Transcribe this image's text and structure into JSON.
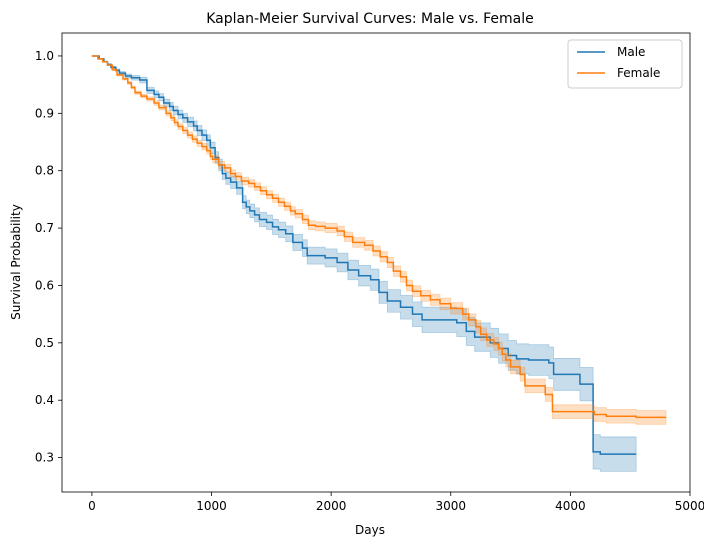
{
  "chart_data": {
    "type": "line",
    "title": "Kaplan-Meier Survival Curves: Male vs. Female",
    "xlabel": "Days",
    "ylabel": "Survival Probability",
    "xlim": [
      -250,
      5000
    ],
    "ylim": [
      0.24,
      1.04
    ],
    "xticks": [
      0,
      1000,
      2000,
      3000,
      4000,
      5000
    ],
    "yticks": [
      0.3,
      0.4,
      0.5,
      0.6,
      0.7,
      0.8,
      0.9,
      1.0
    ],
    "grid": false,
    "legend_position": "top-right",
    "step": true,
    "series": [
      {
        "name": "Male",
        "color": "#1f77b4",
        "points": [
          [
            0,
            1.0
          ],
          [
            60,
            0.995
          ],
          [
            100,
            0.99
          ],
          [
            130,
            0.985
          ],
          [
            160,
            0.98
          ],
          [
            200,
            0.975
          ],
          [
            230,
            0.97
          ],
          [
            280,
            0.965
          ],
          [
            330,
            0.962
          ],
          [
            400,
            0.958
          ],
          [
            460,
            0.94
          ],
          [
            520,
            0.933
          ],
          [
            560,
            0.928
          ],
          [
            600,
            0.918
          ],
          [
            650,
            0.912
          ],
          [
            680,
            0.905
          ],
          [
            720,
            0.898
          ],
          [
            760,
            0.892
          ],
          [
            800,
            0.885
          ],
          [
            850,
            0.878
          ],
          [
            880,
            0.87
          ],
          [
            920,
            0.862
          ],
          [
            960,
            0.853
          ],
          [
            990,
            0.84
          ],
          [
            1030,
            0.823
          ],
          [
            1060,
            0.81
          ],
          [
            1090,
            0.795
          ],
          [
            1120,
            0.787
          ],
          [
            1160,
            0.78
          ],
          [
            1210,
            0.77
          ],
          [
            1260,
            0.745
          ],
          [
            1290,
            0.737
          ],
          [
            1320,
            0.73
          ],
          [
            1360,
            0.723
          ],
          [
            1400,
            0.715
          ],
          [
            1460,
            0.71
          ],
          [
            1510,
            0.702
          ],
          [
            1560,
            0.697
          ],
          [
            1620,
            0.69
          ],
          [
            1680,
            0.675
          ],
          [
            1760,
            0.665
          ],
          [
            1800,
            0.652
          ],
          [
            1950,
            0.648
          ],
          [
            2050,
            0.64
          ],
          [
            2140,
            0.627
          ],
          [
            2230,
            0.617
          ],
          [
            2330,
            0.61
          ],
          [
            2400,
            0.588
          ],
          [
            2470,
            0.573
          ],
          [
            2580,
            0.562
          ],
          [
            2680,
            0.55
          ],
          [
            2760,
            0.54
          ],
          [
            3050,
            0.535
          ],
          [
            3130,
            0.52
          ],
          [
            3200,
            0.51
          ],
          [
            3330,
            0.5
          ],
          [
            3400,
            0.49
          ],
          [
            3480,
            0.478
          ],
          [
            3550,
            0.472
          ],
          [
            3650,
            0.47
          ],
          [
            3820,
            0.465
          ],
          [
            3860,
            0.445
          ],
          [
            4080,
            0.428
          ],
          [
            4190,
            0.31
          ],
          [
            4250,
            0.306
          ],
          [
            4550,
            0.306
          ]
        ],
        "band_halfwidth": [
          [
            0,
            0.0
          ],
          [
            400,
            0.005
          ],
          [
            1000,
            0.01
          ],
          [
            1500,
            0.013
          ],
          [
            2000,
            0.016
          ],
          [
            2500,
            0.02
          ],
          [
            3000,
            0.024
          ],
          [
            3500,
            0.026
          ],
          [
            3900,
            0.028
          ],
          [
            4190,
            0.03
          ],
          [
            4550,
            0.03
          ]
        ]
      },
      {
        "name": "Female",
        "color": "#ff7f0e",
        "points": [
          [
            0,
            1.0
          ],
          [
            50,
            0.995
          ],
          [
            90,
            0.99
          ],
          [
            130,
            0.984
          ],
          [
            170,
            0.976
          ],
          [
            210,
            0.967
          ],
          [
            260,
            0.96
          ],
          [
            300,
            0.953
          ],
          [
            330,
            0.945
          ],
          [
            360,
            0.936
          ],
          [
            410,
            0.93
          ],
          [
            460,
            0.925
          ],
          [
            520,
            0.918
          ],
          [
            560,
            0.91
          ],
          [
            620,
            0.9
          ],
          [
            660,
            0.892
          ],
          [
            690,
            0.884
          ],
          [
            720,
            0.877
          ],
          [
            760,
            0.87
          ],
          [
            800,
            0.862
          ],
          [
            840,
            0.855
          ],
          [
            880,
            0.848
          ],
          [
            920,
            0.842
          ],
          [
            960,
            0.835
          ],
          [
            990,
            0.825
          ],
          [
            1010,
            0.82
          ],
          [
            1060,
            0.81
          ],
          [
            1110,
            0.805
          ],
          [
            1160,
            0.795
          ],
          [
            1200,
            0.79
          ],
          [
            1250,
            0.782
          ],
          [
            1310,
            0.778
          ],
          [
            1360,
            0.772
          ],
          [
            1410,
            0.765
          ],
          [
            1460,
            0.758
          ],
          [
            1510,
            0.752
          ],
          [
            1560,
            0.745
          ],
          [
            1610,
            0.738
          ],
          [
            1660,
            0.73
          ],
          [
            1700,
            0.725
          ],
          [
            1760,
            0.715
          ],
          [
            1810,
            0.705
          ],
          [
            1870,
            0.703
          ],
          [
            1950,
            0.7
          ],
          [
            2050,
            0.695
          ],
          [
            2110,
            0.685
          ],
          [
            2180,
            0.675
          ],
          [
            2280,
            0.67
          ],
          [
            2350,
            0.66
          ],
          [
            2410,
            0.65
          ],
          [
            2470,
            0.64
          ],
          [
            2520,
            0.625
          ],
          [
            2580,
            0.615
          ],
          [
            2630,
            0.6
          ],
          [
            2680,
            0.59
          ],
          [
            2750,
            0.582
          ],
          [
            2830,
            0.575
          ],
          [
            2910,
            0.568
          ],
          [
            3000,
            0.56
          ],
          [
            3100,
            0.55
          ],
          [
            3150,
            0.54
          ],
          [
            3210,
            0.528
          ],
          [
            3250,
            0.515
          ],
          [
            3300,
            0.505
          ],
          [
            3360,
            0.498
          ],
          [
            3400,
            0.49
          ],
          [
            3430,
            0.48
          ],
          [
            3460,
            0.47
          ],
          [
            3500,
            0.458
          ],
          [
            3580,
            0.445
          ],
          [
            3620,
            0.425
          ],
          [
            3790,
            0.41
          ],
          [
            3850,
            0.38
          ],
          [
            4200,
            0.375
          ],
          [
            4300,
            0.372
          ],
          [
            4550,
            0.37
          ],
          [
            4800,
            0.37
          ]
        ],
        "band_halfwidth": [
          [
            0,
            0.0
          ],
          [
            500,
            0.004
          ],
          [
            1000,
            0.006
          ],
          [
            2000,
            0.008
          ],
          [
            3000,
            0.01
          ],
          [
            3500,
            0.012
          ],
          [
            4000,
            0.012
          ],
          [
            4800,
            0.012
          ]
        ]
      }
    ]
  }
}
